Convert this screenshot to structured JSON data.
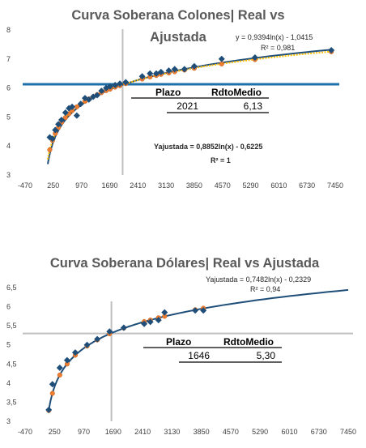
{
  "colors": {
    "real_series": "#1F4E79",
    "adjusted_series": "#ED7D31",
    "adjusted_line_dotted": "#FFC000",
    "reference_line_top": "#1F6FA8",
    "reference_line_bottom": "#BFBFBF",
    "title_text": "#595959"
  },
  "chart_data": [
    {
      "type": "scatter",
      "title": "Curva Soberana Colones| Real vs Ajustada",
      "title_line1": "Curva Soberana Colones| Real vs",
      "title_line2": "Ajustada",
      "x_ticks": [
        "-470",
        "250",
        "970",
        "1690",
        "2410",
        "3130",
        "3850",
        "4570",
        "5290",
        "6010",
        "6730",
        "7450"
      ],
      "y_ticks": [
        "3",
        "4",
        "5",
        "6",
        "7",
        "8"
      ],
      "xlim": [
        -470,
        7450
      ],
      "ylim": [
        3,
        8
      ],
      "grid": false,
      "legend": "none",
      "series": [
        {
          "marker": "diamond",
          "points": [
            {
              "x": 160,
              "y": 4.3
            },
            {
              "x": 230,
              "y": 4.25
            },
            {
              "x": 300,
              "y": 4.55
            },
            {
              "x": 380,
              "y": 4.75
            },
            {
              "x": 460,
              "y": 4.9
            },
            {
              "x": 560,
              "y": 5.15
            },
            {
              "x": 650,
              "y": 5.3
            },
            {
              "x": 730,
              "y": 5.35
            },
            {
              "x": 850,
              "y": 5.05
            },
            {
              "x": 950,
              "y": 5.45
            },
            {
              "x": 1060,
              "y": 5.65
            },
            {
              "x": 1160,
              "y": 5.6
            },
            {
              "x": 1270,
              "y": 5.7
            },
            {
              "x": 1370,
              "y": 5.75
            },
            {
              "x": 1480,
              "y": 5.9
            },
            {
              "x": 1600,
              "y": 6.0
            },
            {
              "x": 1700,
              "y": 6.05
            },
            {
              "x": 1830,
              "y": 6.1
            },
            {
              "x": 1950,
              "y": 6.15
            },
            {
              "x": 2100,
              "y": 6.2
            },
            {
              "x": 2520,
              "y": 6.4
            },
            {
              "x": 2720,
              "y": 6.5
            },
            {
              "x": 2880,
              "y": 6.5
            },
            {
              "x": 3000,
              "y": 6.55
            },
            {
              "x": 3200,
              "y": 6.6
            },
            {
              "x": 3350,
              "y": 6.65
            },
            {
              "x": 3600,
              "y": 6.65
            },
            {
              "x": 3850,
              "y": 6.75
            },
            {
              "x": 4550,
              "y": 7.0
            },
            {
              "x": 5400,
              "y": 7.05
            },
            {
              "x": 7350,
              "y": 7.3
            }
          ],
          "trendline": {
            "a": 0.9394,
            "b": -1.0415,
            "x_from": 110,
            "x_to": 7400
          }
        },
        {
          "marker": "circle",
          "points": [
            {
              "x": 160,
              "y": 3.87
            },
            {
              "x": 230,
              "y": 4.19
            },
            {
              "x": 300,
              "y": 4.43
            },
            {
              "x": 380,
              "y": 4.63
            },
            {
              "x": 460,
              "y": 4.81
            },
            {
              "x": 560,
              "y": 4.98
            },
            {
              "x": 650,
              "y": 5.11
            },
            {
              "x": 730,
              "y": 5.22
            },
            {
              "x": 850,
              "y": 5.35
            },
            {
              "x": 950,
              "y": 5.45
            },
            {
              "x": 1060,
              "y": 5.54
            },
            {
              "x": 1160,
              "y": 5.62
            },
            {
              "x": 1270,
              "y": 5.7
            },
            {
              "x": 1370,
              "y": 5.77
            },
            {
              "x": 1480,
              "y": 5.84
            },
            {
              "x": 1600,
              "y": 5.91
            },
            {
              "x": 1700,
              "y": 5.96
            },
            {
              "x": 1830,
              "y": 6.03
            },
            {
              "x": 1950,
              "y": 6.08
            },
            {
              "x": 2100,
              "y": 6.15
            },
            {
              "x": 2520,
              "y": 6.31
            },
            {
              "x": 2720,
              "y": 6.38
            },
            {
              "x": 2880,
              "y": 6.43
            },
            {
              "x": 3000,
              "y": 6.47
            },
            {
              "x": 3200,
              "y": 6.52
            },
            {
              "x": 3350,
              "y": 6.56
            },
            {
              "x": 3600,
              "y": 6.62
            },
            {
              "x": 3850,
              "y": 6.68
            },
            {
              "x": 4550,
              "y": 6.83
            },
            {
              "x": 5400,
              "y": 6.98
            },
            {
              "x": 7350,
              "y": 7.25
            }
          ],
          "trendline": {
            "a": 0.8852,
            "b": -0.6225,
            "x_from": 110,
            "x_to": 7400
          }
        }
      ],
      "reference": {
        "x": 2021,
        "y": 6.13
      },
      "annotations": {
        "real_equation": "y = 0,9394ln(x) - 1,0415",
        "real_r2": "R² = 0,981",
        "adjusted_equation": "Yajustada = 0,8852ln(x) - 0,6225",
        "adjusted_r2": "R² = 1"
      },
      "table": {
        "headers": [
          "Plazo",
          "RdtoMedio"
        ],
        "values": [
          "2021",
          "6,13"
        ]
      }
    },
    {
      "type": "scatter",
      "title": "Curva Soberana Dólares| Real vs Ajustada",
      "x_ticks": [
        "-470",
        "250",
        "970",
        "1690",
        "2410",
        "3130",
        "3850",
        "4570",
        "5290",
        "6010",
        "6730",
        "7450"
      ],
      "y_ticks": [
        "3",
        "3,5",
        "4",
        "4,5",
        "5",
        "5,5",
        "6",
        "6,5"
      ],
      "xlim": [
        -470,
        7450
      ],
      "ylim": [
        3,
        6.5
      ],
      "grid": false,
      "legend": "none",
      "series": [
        {
          "marker": "diamond",
          "points": [
            {
              "x": 110,
              "y": 3.3
            },
            {
              "x": 200,
              "y": 3.97
            },
            {
              "x": 380,
              "y": 4.4
            },
            {
              "x": 560,
              "y": 4.6
            },
            {
              "x": 760,
              "y": 4.8
            },
            {
              "x": 1050,
              "y": 5.0
            },
            {
              "x": 1300,
              "y": 5.15
            },
            {
              "x": 1600,
              "y": 5.35
            },
            {
              "x": 1950,
              "y": 5.45
            },
            {
              "x": 2450,
              "y": 5.55
            },
            {
              "x": 2600,
              "y": 5.6
            },
            {
              "x": 2800,
              "y": 5.65
            },
            {
              "x": 2950,
              "y": 5.85
            },
            {
              "x": 3700,
              "y": 5.9
            },
            {
              "x": 3900,
              "y": 5.9
            }
          ],
          "trendline": {
            "a": 0.7482,
            "b": -0.2329,
            "x_from": 105,
            "x_to": 7450
          }
        },
        {
          "marker": "circle",
          "points": [
            {
              "x": 110,
              "y": 3.28
            },
            {
              "x": 200,
              "y": 3.73
            },
            {
              "x": 380,
              "y": 4.21
            },
            {
              "x": 560,
              "y": 4.5
            },
            {
              "x": 760,
              "y": 4.73
            },
            {
              "x": 1050,
              "y": 4.97
            },
            {
              "x": 1300,
              "y": 5.13
            },
            {
              "x": 1600,
              "y": 5.29
            },
            {
              "x": 1950,
              "y": 5.44
            },
            {
              "x": 2450,
              "y": 5.61
            },
            {
              "x": 2600,
              "y": 5.65
            },
            {
              "x": 2800,
              "y": 5.71
            },
            {
              "x": 2950,
              "y": 5.75
            },
            {
              "x": 3700,
              "y": 5.92
            },
            {
              "x": 3900,
              "y": 5.96
            }
          ]
        }
      ],
      "reference": {
        "x": 1646,
        "y": 5.3
      },
      "annotations": {
        "adjusted_equation": "Yajustada = 0,7482ln(x) - 0,2329",
        "adjusted_r2": "R² = 0,94"
      },
      "table": {
        "headers": [
          "Plazo",
          "RdtoMedio"
        ],
        "values": [
          "1646",
          "5,30"
        ]
      }
    }
  ]
}
